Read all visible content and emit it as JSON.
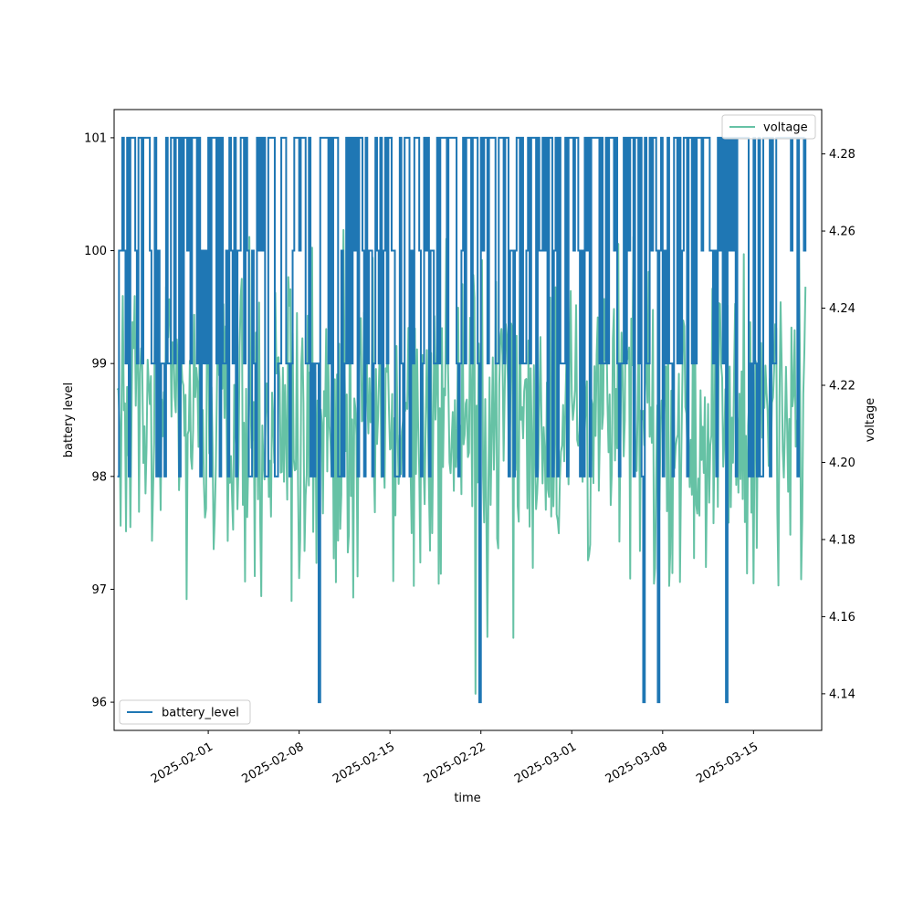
{
  "chart_data": {
    "type": "line",
    "title": "",
    "xlabel": "time",
    "ylabel_left": "battery level",
    "ylabel_right": "voltage",
    "xlim": [
      "2025-01-24T18:00",
      "2025-03-20T06:00"
    ],
    "ylim_left": [
      95.75,
      101.25
    ],
    "ylim_right": [
      4.1305,
      4.2915
    ],
    "x_ticks": [
      "2025-02-01",
      "2025-02-08",
      "2025-02-15",
      "2025-02-22",
      "2025-03-01",
      "2025-03-08",
      "2025-03-15"
    ],
    "y_ticks_left": [
      "96",
      "97",
      "98",
      "99",
      "100",
      "101"
    ],
    "y_ticks_right": [
      "4.14",
      "4.16",
      "4.18",
      "4.20",
      "4.22",
      "4.24",
      "4.26",
      "4.28"
    ],
    "grid": false,
    "time_range": [
      "2025-01-25",
      "2025-03-19"
    ],
    "series": [
      {
        "name": "battery_level",
        "axis": "left",
        "color": "#1f77b4",
        "levels": [
          96,
          98,
          99,
          100,
          101
        ],
        "typical": 101,
        "dips_to_96": [
          "2025-02-09T12:00",
          "2025-02-21T21:00",
          "2025-03-06T13:00",
          "2025-03-07T14:00",
          "2025-03-12T21:00"
        ]
      },
      {
        "name": "voltage",
        "axis": "right",
        "color": "#66c2a5",
        "min": 4.14,
        "max": 4.285,
        "mean": 4.21,
        "spikes_low": [
          "2025-02-04T07:00",
          "2025-02-21T14:00",
          "2025-03-06T13:00",
          "2025-03-12T21:00"
        ]
      }
    ],
    "legend_left": {
      "label": "battery_level",
      "placement": "lower-left"
    },
    "legend_right": {
      "label": "voltage",
      "placement": "upper-right"
    }
  }
}
